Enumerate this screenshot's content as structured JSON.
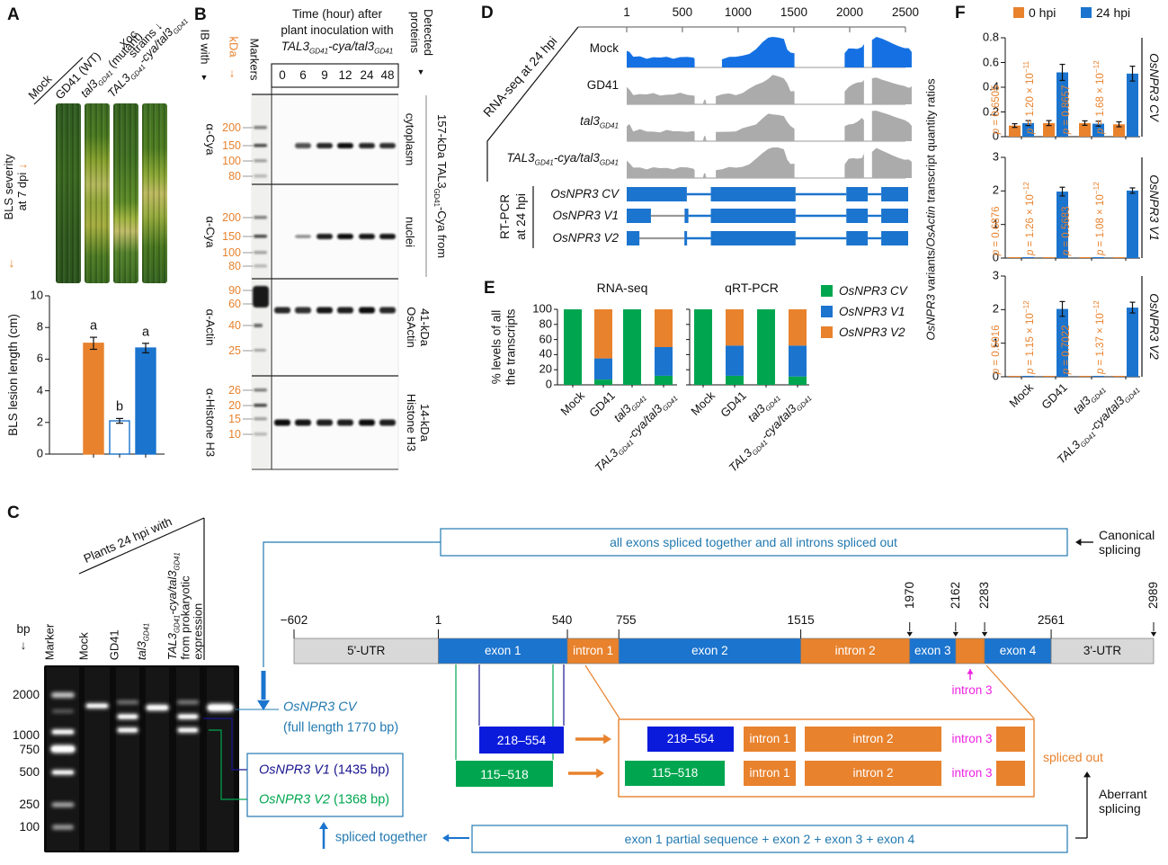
{
  "colors": {
    "blue": "#1B74CE",
    "mockblue": "#1571E3",
    "orange": "#E8822D",
    "green": "#00A64F",
    "navy": "#18148E",
    "bluebox": "#0A1BDC",
    "teal": "#2279B0",
    "magenta": "#EE22E2",
    "gray_track": "#ABABAB",
    "utr_gray": "#D8D8D8",
    "black": "#111111"
  },
  "strains_html": [
    "Mock",
    "GD41",
    "<i>tal3<sub>GD41</sub></i>",
    "<i>TAL3<sub>GD41</sub>-cya/tal3<sub>GD41</sub></i>"
  ],
  "panelA": {
    "label": "A",
    "xoc_html": "<i>Xoc</i><br>strains ↓",
    "lanes": [
      "Mock",
      "GD41 (WT)",
      "<i>tal3<sub>GD41</sub></i> (mutant)",
      "<i>TAL3<sub>GD41</sub>-cya/tal3<sub>GD41</sub></i>"
    ],
    "severity_html": "BLS severity<br>at 7 dpi <span class=\"oc\">↓</span>",
    "arrow": "↓"
  },
  "panelB": {
    "label": "B",
    "ib": "IB with",
    "ib_arrow": "▼",
    "kda": "kDa",
    "kda_arrow": "↓",
    "markers": "Markers",
    "title1": "Time (hour) after",
    "title2": "plant inoculation with",
    "title3_html": "<i>TAL3<sub>GD41</sub>-cya/tal3<sub>GD41</sub></i>",
    "times": [
      "0",
      "6",
      "9",
      "12",
      "24",
      "48"
    ],
    "detected_html": "Detected<br>proteins",
    "detected_arrow": "▼",
    "bracket_html": "157-kDa TAL3<sub>GD41</sub>-Cya from",
    "blots": [
      {
        "ab": "α-Cya",
        "kda": [
          "200",
          "150",
          "100",
          "80"
        ],
        "right_html": "cytoplasm"
      },
      {
        "ab": "α-Cya",
        "kda": [
          "200",
          "150",
          "100",
          "80"
        ],
        "right_html": "nuclei"
      },
      {
        "ab": "α-Actin",
        "kda": [
          "90",
          "60",
          "40",
          "25"
        ],
        "right_html": "41-kDa<br>OsActin"
      },
      {
        "ab": "α-Histone H3",
        "kda": [
          "26",
          "20",
          "15",
          "10"
        ],
        "right_html": "14-kDa<br>Histone H3"
      }
    ]
  },
  "panelC": {
    "label": "C",
    "bp": "bp",
    "bp_arrow": "↓",
    "plants_header": "Plants 24 hpi with",
    "ladder": [
      "2000",
      "1000",
      "750",
      "500",
      "250",
      "100"
    ],
    "gel_lanes": [
      "Marker",
      "Mock",
      "GD41",
      "<i>tal3<sub>GD41</sub></i>",
      "<i>TAL3<sub>GD41</sub>-cya/tal3<sub>GD41</sub></i>",
      "from prokaryotic<br>expression"
    ],
    "cv_html": "<i>OsNPR3 CV</i>",
    "cv_size": "(full length 1770 bp)",
    "v1_html": "<i>OsNPR3 V1</i> (1435 bp)",
    "v2_html": "<i>OsNPR3 V2</i> (1368 bp)",
    "spliced_together": "spliced together",
    "canonical_box": "all exons spliced together and all introns spliced out",
    "canonical_label_html": "Canonical<br>splicing",
    "bottom_box": "exon 1 partial sequence + exon 2 + exon 3 + exon 4",
    "aberrant_label_html": "Aberrant<br>splicing",
    "spliced_out": "spliced out",
    "intron3": "intron 3",
    "frag_v1": "218–554",
    "frag_v2": "115–518",
    "introns_row": [
      "intron 1",
      "intron 2",
      "intron 3"
    ],
    "gene": {
      "coords": [
        "−602",
        "1",
        "540",
        "755",
        "1515",
        "1970",
        "2162",
        "2283",
        "2561",
        "2989"
      ],
      "coord_bp": [
        -602,
        1,
        540,
        755,
        1515,
        1970,
        2162,
        2283,
        2561,
        2989
      ],
      "rotated": [
        false,
        false,
        false,
        false,
        false,
        true,
        true,
        true,
        false,
        true
      ],
      "segments": [
        {
          "label": "5'-UTR",
          "from": -602,
          "to": 1,
          "kind": "utr"
        },
        {
          "label": "exon 1",
          "from": 1,
          "to": 540,
          "kind": "exon"
        },
        {
          "label": "intron 1",
          "from": 540,
          "to": 755,
          "kind": "intron"
        },
        {
          "label": "exon 2",
          "from": 755,
          "to": 1515,
          "kind": "exon"
        },
        {
          "label": "intron 2",
          "from": 1515,
          "to": 1970,
          "kind": "intron"
        },
        {
          "label": "exon 3",
          "from": 1970,
          "to": 2162,
          "kind": "exon"
        },
        {
          "label": "",
          "from": 2162,
          "to": 2283,
          "kind": "intron"
        },
        {
          "label": "exon 4",
          "from": 2283,
          "to": 2561,
          "kind": "exon"
        },
        {
          "label": "3'-UTR",
          "from": 2561,
          "to": 2989,
          "kind": "utr"
        }
      ]
    }
  },
  "panelD": {
    "label": "D",
    "rnaseq": "RNA-seq at 24 hpi",
    "rtpcr1": "RT-PCR",
    "rtpcr2": "at 24 hpi",
    "transcripts": [
      "<i>OsNPR3 CV</i>",
      "<i>OsNPR3 V1</i>",
      "<i>OsNPR3 V2</i>"
    ]
  },
  "panelE": {
    "label": "E",
    "titles": [
      "RNA-seq",
      "qRT-PCR"
    ],
    "ylabel_html": "% levels of all<br>the transcripts",
    "legend": [
      "<i>OsNPR3 CV</i>",
      "<i>OsNPR3 V1</i>",
      "<i>OsNPR3 V2</i>"
    ]
  },
  "panelF": {
    "label": "F",
    "legend": [
      "0 hpi",
      "24 hpi"
    ],
    "ylabel_html": "<i>OsNPR3</i> variants/<i>OsActin</i> transcript quantity ratios"
  },
  "chart_data": [
    {
      "id": "A-lesion",
      "type": "bar",
      "ylabel": "BLS lesion length (cm)",
      "ylim": [
        0,
        10
      ],
      "yticks": [
        "0",
        "2",
        "4",
        "6",
        "8",
        "10"
      ],
      "categories": [
        "GD41",
        "tal3_GD41",
        "TAL3_GD41-cya/tal3_GD41"
      ],
      "values": [
        7.0,
        2.1,
        6.7
      ],
      "errors": [
        0.38,
        0.15,
        0.3
      ],
      "letters": [
        "a",
        "b",
        "a"
      ],
      "bar_fill": [
        "orange",
        "white",
        "blue"
      ],
      "bar_border": [
        "orange",
        "blue",
        "blue"
      ]
    },
    {
      "id": "E-rnaseq",
      "type": "stacked-bar",
      "title": "RNA-seq",
      "ylim": [
        0,
        100
      ],
      "yticks": [
        "0",
        "20",
        "40",
        "60",
        "80",
        "100"
      ],
      "categories": [
        "Mock",
        "GD41",
        "tal3_GD41",
        "TAL3_GD41-cya/tal3_GD41"
      ],
      "series": [
        {
          "name": "OsNPR3 CV",
          "color": "green",
          "values": [
            100,
            7,
            100,
            12
          ]
        },
        {
          "name": "OsNPR3 V1",
          "color": "blue",
          "values": [
            0,
            28,
            0,
            38
          ]
        },
        {
          "name": "OsNPR3 V2",
          "color": "orange",
          "values": [
            0,
            65,
            0,
            50
          ]
        }
      ]
    },
    {
      "id": "E-qrtpcr",
      "type": "stacked-bar",
      "title": "qRT-PCR",
      "ylim": [
        0,
        100
      ],
      "categories": [
        "Mock",
        "GD41",
        "tal3_GD41",
        "TAL3_GD41-cya/tal3_GD41"
      ],
      "series": [
        {
          "name": "OsNPR3 CV",
          "color": "green",
          "values": [
            100,
            12,
            100,
            11
          ]
        },
        {
          "name": "OsNPR3 V1",
          "color": "blue",
          "values": [
            0,
            40,
            0,
            41
          ]
        },
        {
          "name": "OsNPR3 V2",
          "color": "orange",
          "values": [
            0,
            48,
            0,
            48
          ]
        }
      ]
    },
    {
      "id": "F-cv",
      "type": "grouped-bar",
      "right_label_html": "<i>OsNPR3 CV</i>",
      "ylim": [
        0,
        0.8
      ],
      "yticks": [
        "0",
        "0.2",
        "0.4",
        "0.6",
        "0.8"
      ],
      "categories": [
        "Mock",
        "GD41",
        "tal3_GD41",
        "TAL3_GD41-cya/tal3_GD41"
      ],
      "series": [
        {
          "name": "0 hpi",
          "values": [
            0.09,
            0.11,
            0.11,
            0.1
          ],
          "errors": [
            0.015,
            0.02,
            0.018,
            0.02
          ]
        },
        {
          "name": "24 hpi",
          "values": [
            0.11,
            0.52,
            0.105,
            0.51
          ],
          "errors": [
            0.02,
            0.065,
            0.02,
            0.06
          ]
        }
      ],
      "p_html": [
        "<i>p</i> = 0.6505",
        "<i>p</i> = 1.20 × 10<sup>−11</sup>",
        "<i>p</i> = 0.8657",
        "<i>p</i> = 1.68 × 10<sup>−12</sup>"
      ]
    },
    {
      "id": "F-v1",
      "type": "grouped-bar",
      "right_label_html": "<i>OsNPR3 V1</i>",
      "ylim": [
        0,
        3
      ],
      "yticks": [
        "0",
        "1",
        "2",
        "3"
      ],
      "categories": [
        "Mock",
        "GD41",
        "tal3_GD41",
        "TAL3_GD41-cya/tal3_GD41"
      ],
      "series": [
        {
          "name": "0 hpi",
          "values": [
            0.02,
            0.02,
            0.02,
            0.02
          ],
          "errors": [
            0,
            0,
            0,
            0
          ]
        },
        {
          "name": "24 hpi",
          "values": [
            0.02,
            1.98,
            0.02,
            2.01
          ],
          "errors": [
            0,
            0.13,
            0,
            0.08
          ]
        }
      ],
      "p_html": [
        "<i>p</i> = 0.6876",
        "<i>p</i> = 1.26 × 10<sup>−12</sup>",
        "<i>p</i> = 0.5683",
        "<i>p</i> = 1.08 × 10<sup>−12</sup>"
      ]
    },
    {
      "id": "F-v2",
      "type": "grouped-bar",
      "right_label_html": "<i>OsNPR3 V2</i>",
      "ylim": [
        0,
        3
      ],
      "yticks": [
        "0",
        "1",
        "2",
        "3"
      ],
      "categories": [
        "Mock",
        "GD41",
        "tal3_GD41",
        "TAL3_GD41-cya/tal3_GD41"
      ],
      "series": [
        {
          "name": "0 hpi",
          "values": [
            0.02,
            0.02,
            0.02,
            0.02
          ],
          "errors": [
            0,
            0,
            0,
            0
          ]
        },
        {
          "name": "24 hpi",
          "values": [
            0.02,
            2.02,
            0.02,
            2.06
          ],
          "errors": [
            0,
            0.22,
            0,
            0.16
          ]
        }
      ],
      "p_html": [
        "<i>p</i> = 0.5016",
        "<i>p</i> = 1.15 × 10<sup>−12</sup>",
        "<i>p</i> = 0.7022",
        "<i>p</i> = 1.37 × 10<sup>−12</sup>"
      ]
    },
    {
      "id": "D-coverage",
      "type": "area",
      "xticks": [
        "1",
        "500",
        "1000",
        "1500",
        "2000",
        "2500"
      ],
      "xticks_bp": [
        1,
        500,
        1000,
        1500,
        2000,
        2500
      ],
      "tracks": [
        {
          "name": "Mock",
          "color": "mockblue",
          "blip": false
        },
        {
          "name": "GD41",
          "color": "gray_track",
          "blip": true
        },
        {
          "name": "tal3_GD41",
          "color": "gray_track",
          "blip": true
        },
        {
          "name": "TAL3_GD41-cya/tal3_GD41",
          "color": "gray_track",
          "blip": true
        }
      ],
      "profile": {
        "seg1": [
          [
            1,
            0.52
          ],
          [
            25,
            0.5
          ],
          [
            60,
            0.31
          ],
          [
            120,
            0.35
          ],
          [
            180,
            0.3
          ],
          [
            240,
            0.33
          ],
          [
            300,
            0.29
          ],
          [
            360,
            0.33
          ],
          [
            420,
            0.3
          ],
          [
            480,
            0.34
          ],
          [
            540,
            0.31
          ],
          [
            600,
            0.3
          ],
          [
            610,
            0.28
          ]
        ],
        "blip": [
          [
            685,
            0.02
          ],
          [
            695,
            0.15
          ],
          [
            705,
            0.16
          ],
          [
            715,
            0.02
          ]
        ],
        "seg2": [
          [
            800,
            0.27
          ],
          [
            860,
            0.3
          ],
          [
            920,
            0.33
          ],
          [
            980,
            0.31
          ],
          [
            1040,
            0.38
          ],
          [
            1100,
            0.47
          ],
          [
            1160,
            0.58
          ],
          [
            1220,
            0.74
          ],
          [
            1270,
            0.87
          ],
          [
            1310,
            0.92
          ],
          [
            1360,
            0.89
          ],
          [
            1410,
            0.84
          ],
          [
            1440,
            0.62
          ],
          [
            1470,
            0.45
          ],
          [
            1505,
            0.42
          ]
        ],
        "seg3": [
          [
            1955,
            0.44
          ],
          [
            1990,
            0.56
          ],
          [
            2030,
            0.6
          ],
          [
            2070,
            0.64
          ],
          [
            2110,
            0.7
          ],
          [
            2128,
            0.73
          ]
        ],
        "seg4": [
          [
            2200,
            0.88
          ],
          [
            2240,
            0.93
          ],
          [
            2290,
            0.86
          ],
          [
            2340,
            0.8
          ],
          [
            2390,
            0.73
          ],
          [
            2440,
            0.67
          ],
          [
            2490,
            0.62
          ],
          [
            2530,
            0.57
          ],
          [
            2556,
            0.52
          ]
        ]
      },
      "transcripts": [
        {
          "name": "OsNPR3 CV",
          "boxes": [
            [
              1,
              540
            ],
            [
              755,
              1515
            ],
            [
              1970,
              2162
            ],
            [
              2283,
              2561
            ]
          ],
          "lines": [
            [
              540,
              755
            ],
            [
              1515,
              1970
            ],
            [
              2162,
              2283
            ]
          ],
          "gray": []
        },
        {
          "name": "OsNPR3 V1",
          "boxes": [
            [
              1,
              218
            ],
            [
              520,
              554
            ],
            [
              755,
              1515
            ],
            [
              1970,
              2162
            ],
            [
              2283,
              2561
            ]
          ],
          "lines": [
            [
              554,
              755
            ],
            [
              1515,
              1970
            ],
            [
              2162,
              2283
            ]
          ],
          "gray": [
            [
              218,
              520
            ]
          ]
        },
        {
          "name": "OsNPR3 V2",
          "boxes": [
            [
              1,
              115
            ],
            [
              518,
              540
            ],
            [
              755,
              1515
            ],
            [
              1970,
              2162
            ],
            [
              2283,
              2561
            ]
          ],
          "lines": [
            [
              540,
              755
            ],
            [
              1515,
              1970
            ],
            [
              2162,
              2283
            ]
          ],
          "gray": [
            [
              115,
              518
            ]
          ]
        }
      ]
    }
  ]
}
